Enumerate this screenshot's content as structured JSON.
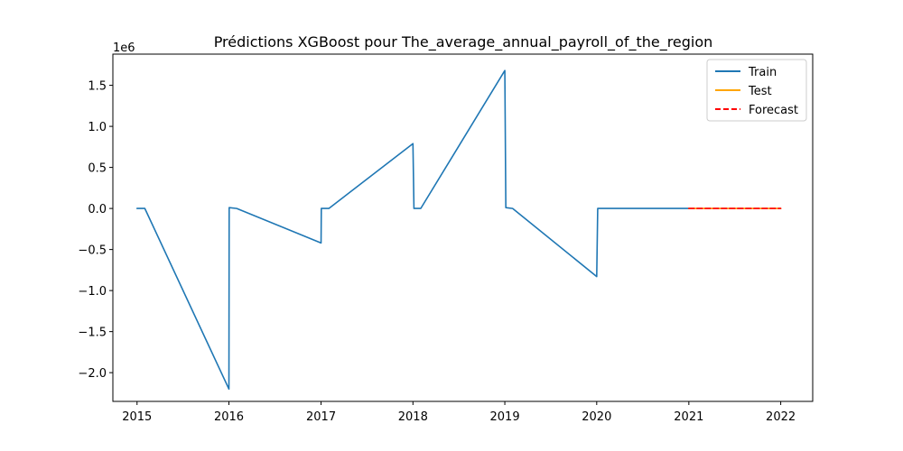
{
  "chart_data": {
    "type": "line",
    "title": "Prédictions XGBoost pour The_average_annual_payroll_of_the_region",
    "xlabel": "",
    "ylabel": "",
    "y_offset_label": "1e6",
    "xlim": [
      "2014-09-27",
      "2022-05-08"
    ],
    "ylim": [
      -2.35,
      1.88
    ],
    "y_scale_factor": 1000000,
    "x_ticks": [
      "2015",
      "2016",
      "2017",
      "2018",
      "2019",
      "2020",
      "2021",
      "2022"
    ],
    "y_ticks": [
      "1.5",
      "1.0",
      "0.5",
      "0.0",
      "−0.5",
      "−1.0",
      "−1.5",
      "−2.0"
    ],
    "y_tick_values": [
      1.5,
      1.0,
      0.5,
      0.0,
      -0.5,
      -1.0,
      -1.5,
      -2.0
    ],
    "grid": false,
    "legend_position": "top-right",
    "series": [
      {
        "name": "Train",
        "color": "#1f77b4",
        "style": "solid",
        "points": [
          [
            "2015-01-01",
            0.0
          ],
          [
            "2015-02-01",
            0.0
          ],
          [
            "2016-01-01",
            -2.2
          ],
          [
            "2016-01-02",
            0.01
          ],
          [
            "2016-02-01",
            0.0
          ],
          [
            "2017-01-01",
            -0.42
          ],
          [
            "2017-01-02",
            0.0
          ],
          [
            "2017-02-01",
            0.0
          ],
          [
            "2018-01-01",
            0.79
          ],
          [
            "2018-01-05",
            0.0
          ],
          [
            "2018-02-01",
            0.0
          ],
          [
            "2019-01-01",
            1.68
          ],
          [
            "2019-01-05",
            0.01
          ],
          [
            "2019-02-01",
            0.0
          ],
          [
            "2020-01-01",
            -0.83
          ],
          [
            "2020-01-05",
            0.0
          ],
          [
            "2020-02-01",
            0.0
          ],
          [
            "2021-01-01",
            0.0
          ]
        ]
      },
      {
        "name": "Test",
        "color": "#ffa500",
        "style": "solid",
        "points": [
          [
            "2021-01-01",
            0.0
          ],
          [
            "2022-01-01",
            0.0
          ]
        ]
      },
      {
        "name": "Forecast",
        "color": "#ff0000",
        "style": "dashed",
        "points": [
          [
            "2021-01-01",
            0.0
          ],
          [
            "2022-01-01",
            0.0
          ]
        ]
      }
    ]
  }
}
